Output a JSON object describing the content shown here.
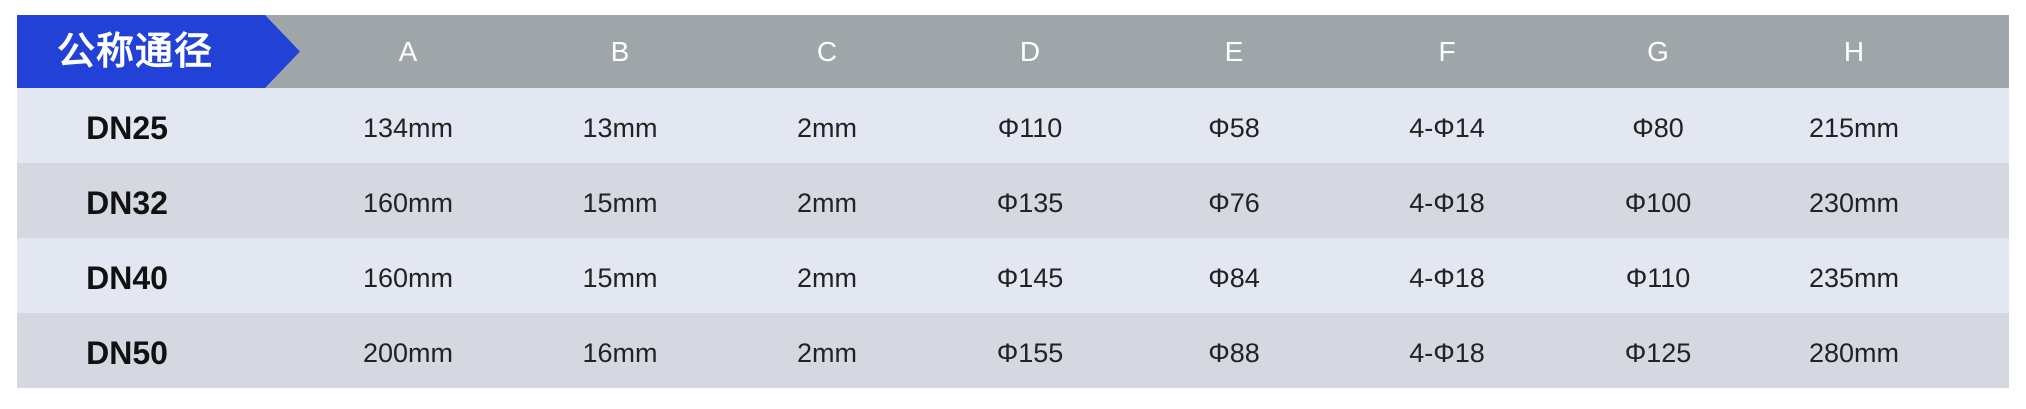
{
  "header": {
    "title": "公称通径",
    "columns": [
      "A",
      "B",
      "C",
      "D",
      "E",
      "F",
      "G",
      "H"
    ]
  },
  "colors": {
    "title_bg": "#2241d7",
    "header_bg": "#9ea6a9",
    "row_light": "#e3e7f2",
    "row_dark": "#d5d8e1"
  },
  "rows": [
    {
      "dn": "DN25",
      "values": [
        "134mm",
        "13mm",
        "2mm",
        "Φ110",
        "Φ58",
        "4-Φ14",
        "Φ80",
        "215mm"
      ]
    },
    {
      "dn": "DN32",
      "values": [
        "160mm",
        "15mm",
        "2mm",
        "Φ135",
        "Φ76",
        "4-Φ18",
        "Φ100",
        "230mm"
      ]
    },
    {
      "dn": "DN40",
      "values": [
        "160mm",
        "15mm",
        "2mm",
        "Φ145",
        "Φ84",
        "4-Φ18",
        "Φ110",
        "235mm"
      ]
    },
    {
      "dn": "DN50",
      "values": [
        "200mm",
        "16mm",
        "2mm",
        "Φ155",
        "Φ88",
        "4-Φ18",
        "Φ125",
        "280mm"
      ]
    }
  ]
}
